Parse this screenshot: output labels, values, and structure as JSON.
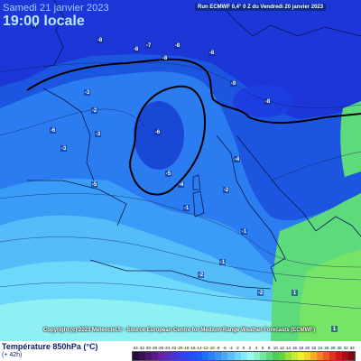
{
  "header": {
    "date": "Samedi 21 janvier 2023",
    "time": "19:00 locale",
    "run": "Run ECMWF 0,4° 0 Z du Vendredi 20 janvier 2023"
  },
  "copyright": "Copyright (c) 2023 Meteociel.fr - Source European Centre for Medium-Range Weather Forecasts (ECMWF)",
  "legend": {
    "title": "Température 850hPa (°C)",
    "subtitle": "(+ 42h)",
    "scale_labels": [
      "-34",
      "-32",
      "-30",
      "-28",
      "-26",
      "-24",
      "-22",
      "-20",
      "-18",
      "-16",
      "-14",
      "-12",
      "-10",
      "-8",
      "-6",
      "-4",
      "-2",
      "0",
      "2",
      "4",
      "6",
      "8",
      "10",
      "12",
      "14",
      "16",
      "18",
      "20",
      "22",
      "24",
      "26",
      "28",
      "30",
      "32",
      "34"
    ],
    "scale_colors": [
      "#2a0a3c",
      "#3a0f55",
      "#4a1470",
      "#5a1a8c",
      "#6a20a8",
      "#5a2ac0",
      "#4a34d4",
      "#3a3ee6",
      "#2a48f2",
      "#1e52f8",
      "#1c5cff",
      "#1e6eff",
      "#2a82ff",
      "#3a96ff",
      "#4aaaff",
      "#5cc0ff",
      "#70d6ff",
      "#86eaff",
      "#9cfaf0",
      "#86f4c8",
      "#6ee8a0",
      "#5cda7c",
      "#4ccc58",
      "#66d640",
      "#9ae03a",
      "#c8ea34",
      "#f0ee30",
      "#f8d02c",
      "#f8aa28",
      "#f48424",
      "#ec5c20",
      "#e0341c",
      "#cc1818",
      "#a80c14",
      "#800810"
    ]
  },
  "map_values": [
    "-8",
    "-8",
    "-7",
    "-8",
    "-8",
    "-7",
    "-8",
    "-9",
    "-8",
    "-3",
    "-2",
    "-3",
    "-3",
    "-6",
    "-6",
    "-5",
    "-5",
    "-4",
    "-4",
    "-1",
    "-2",
    "-2",
    "-1",
    "-2",
    "-1",
    "1",
    "1"
  ],
  "scheme": {
    "sea": "#1c56e0",
    "accent": "#0b1f6b"
  }
}
